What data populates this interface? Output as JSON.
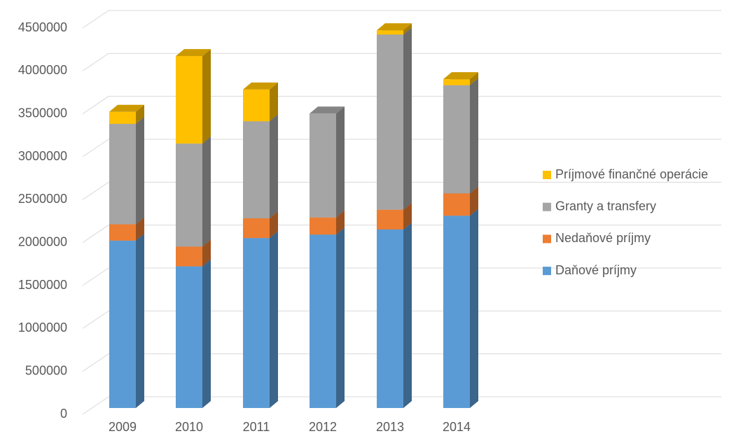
{
  "chart_data": {
    "type": "bar3d_stacked",
    "categories": [
      "2009",
      "2010",
      "2011",
      "2012",
      "2013",
      "2014"
    ],
    "series": [
      {
        "name": "Daňové príjmy",
        "color": "#5b9bd5",
        "values": [
          1950000,
          1650000,
          1980000,
          2020000,
          2080000,
          2240000
        ]
      },
      {
        "name": "Nedaňové príjmy",
        "color": "#ed7d31",
        "values": [
          190000,
          230000,
          230000,
          200000,
          230000,
          260000
        ]
      },
      {
        "name": "Granty a transfery",
        "color": "#a5a5a5",
        "values": [
          1170000,
          1200000,
          1130000,
          1210000,
          2040000,
          1260000
        ]
      },
      {
        "name": "Príjmové finančné operácie",
        "color": "#ffc000",
        "values": [
          140000,
          1020000,
          370000,
          0,
          50000,
          70000
        ]
      }
    ],
    "ylim": [
      0,
      4500000
    ],
    "yticks": [
      0,
      500000,
      1000000,
      1500000,
      2000000,
      2500000,
      3000000,
      3500000,
      4000000,
      4500000
    ],
    "grid": true,
    "legend": "right"
  }
}
